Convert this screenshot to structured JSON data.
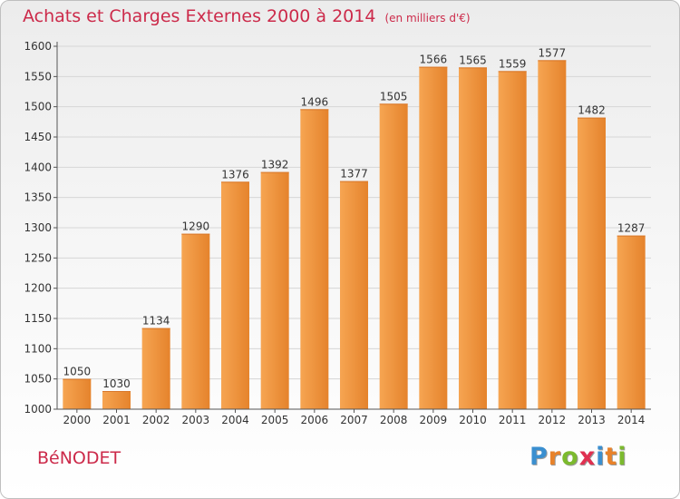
{
  "title": "Achats et Charges Externes 2000 à 2014",
  "subtitle": "(en milliers d'€)",
  "commune": "BéNODET",
  "logo": {
    "text": "Proxiti",
    "letter_colors": [
      "#3a8fd0",
      "#e8822a",
      "#7cba2e",
      "#e03050",
      "#3a8fd0",
      "#e8822a",
      "#7cba2e"
    ]
  },
  "colors": {
    "title": "#cc2a4a",
    "bar_light": "#f6a552",
    "bar_dark": "#e5832c",
    "grid": "#d6d6d6",
    "axis": "#555555",
    "text": "#333333"
  },
  "chart_data": {
    "type": "bar",
    "title": "Achats et Charges Externes 2000 à 2014",
    "subtitle": "(en milliers d'€)",
    "xlabel": "",
    "ylabel": "",
    "categories": [
      "2000",
      "2001",
      "2002",
      "2003",
      "2004",
      "2005",
      "2006",
      "2007",
      "2008",
      "2009",
      "2010",
      "2011",
      "2012",
      "2013",
      "2014"
    ],
    "values": [
      1050,
      1030,
      1134,
      1290,
      1376,
      1392,
      1496,
      1377,
      1505,
      1566,
      1565,
      1559,
      1577,
      1482,
      1287
    ],
    "ylim": [
      1000,
      1600
    ],
    "yticks": [
      1000,
      1050,
      1100,
      1150,
      1200,
      1250,
      1300,
      1350,
      1400,
      1450,
      1500,
      1550,
      1600
    ],
    "grid": true,
    "data_labels": true
  }
}
